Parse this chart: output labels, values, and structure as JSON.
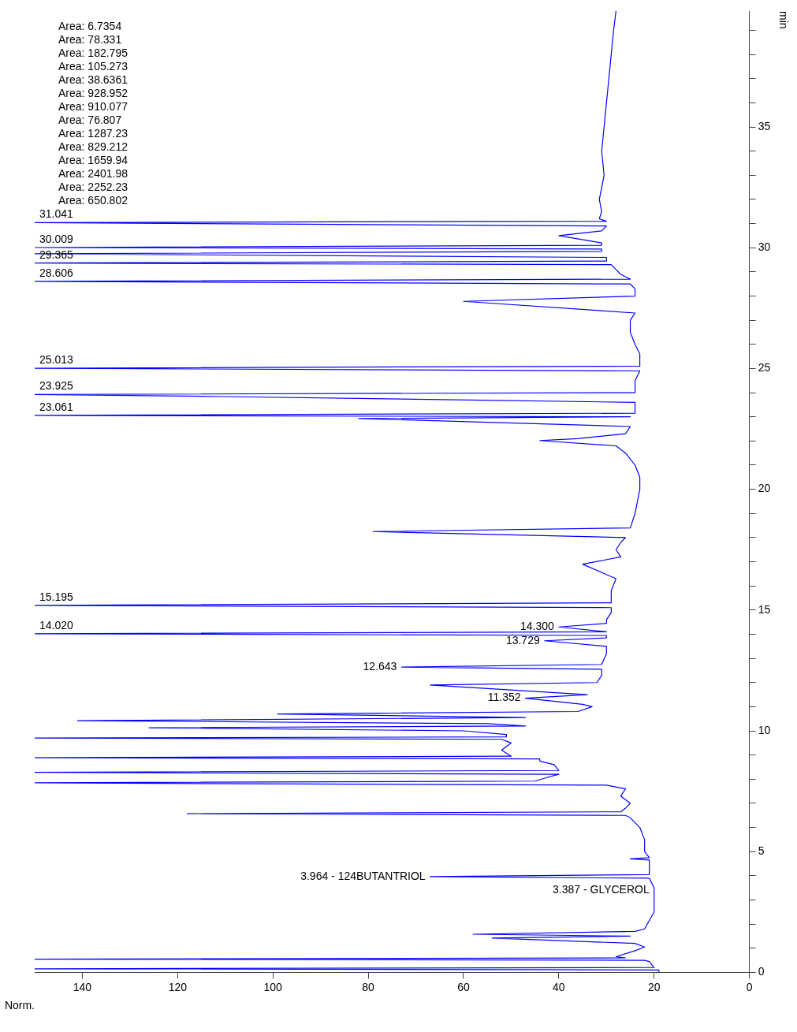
{
  "chart_data": {
    "type": "line",
    "xlabel": "Norm.",
    "ylabel": "min",
    "series": [
      {
        "color": "#0000ff",
        "x": [
          19,
          19,
          150,
          20,
          21,
          22,
          150,
          26,
          28,
          24,
          22,
          24,
          54,
          25,
          58,
          24,
          22,
          20,
          20,
          20,
          21,
          67,
          21,
          21,
          21,
          25,
          21,
          22,
          22,
          23,
          25,
          26,
          118,
          27,
          26,
          25,
          27,
          26,
          30,
          150,
          45,
          42,
          40,
          150,
          40,
          41,
          44,
          44,
          150,
          50,
          52,
          50,
          52,
          150,
          51,
          51,
          60,
          126,
          47,
          55,
          141,
          47,
          99,
          36,
          33,
          35,
          47,
          34,
          67,
          32,
          31,
          31,
          73,
          31,
          30,
          30,
          43,
          30,
          30,
          150,
          30,
          40,
          30,
          30,
          29,
          29,
          150,
          29,
          29,
          28,
          35,
          27,
          28,
          27,
          26,
          79,
          25,
          24,
          23,
          23,
          24,
          26,
          28,
          44,
          36,
          26,
          25,
          82,
          25,
          150,
          24,
          24,
          24,
          111,
          150,
          24,
          24,
          24,
          23,
          150,
          23,
          23,
          24,
          25,
          25,
          24,
          60,
          24,
          24,
          25,
          150,
          25,
          27,
          28,
          29,
          150,
          30,
          30,
          150,
          31,
          31,
          150,
          31,
          31,
          40,
          31,
          30,
          150,
          30,
          31.5,
          31,
          31.5,
          30.5,
          31,
          30.5,
          30,
          29.5,
          29,
          28.5,
          28
        ],
        "values": [
          0,
          0.1,
          0.15,
          0.2,
          0.45,
          0.5,
          0.55,
          0.6,
          0.65,
          0.9,
          1.05,
          1.2,
          1.42,
          1.5,
          1.58,
          1.7,
          1.8,
          2.5,
          3.387,
          3.5,
          3.9,
          3.964,
          4.05,
          4.2,
          4.65,
          4.7,
          4.75,
          5,
          5.5,
          6,
          6.4,
          6.5,
          6.57,
          6.65,
          6.8,
          7,
          7.3,
          7.6,
          7.75,
          7.85,
          7.92,
          8.1,
          8.2,
          8.28,
          8.36,
          8.6,
          8.75,
          8.84,
          8.89,
          8.95,
          9.2,
          9.5,
          9.65,
          9.7,
          9.75,
          9.85,
          10,
          10.13,
          10.2,
          10.3,
          10.42,
          10.55,
          10.7,
          10.8,
          11,
          11.1,
          11.352,
          11.5,
          11.9,
          12,
          12.3,
          12.55,
          12.643,
          12.75,
          13.2,
          13.5,
          13.729,
          13.85,
          13.95,
          14.02,
          14.1,
          14.3,
          14.45,
          14.6,
          14.9,
          15.1,
          15.195,
          15.3,
          15.8,
          16.3,
          16.9,
          17.2,
          17.5,
          17.8,
          18,
          18.25,
          18.4,
          19,
          20,
          20.5,
          21,
          21.5,
          21.8,
          22.02,
          22.1,
          22.3,
          22.6,
          22.93,
          23,
          23.061,
          23.15,
          23.3,
          23.6,
          23.84,
          23.925,
          24,
          24.1,
          24.5,
          24.9,
          25.013,
          25.1,
          25.6,
          26,
          26.5,
          27,
          27.3,
          27.78,
          28,
          28.3,
          28.5,
          28.606,
          28.7,
          28.9,
          29.1,
          29.3,
          29.365,
          29.45,
          29.6,
          29.75,
          29.85,
          29.95,
          30.009,
          30.1,
          30.2,
          30.5,
          30.7,
          30.9,
          31.041,
          31.1,
          31.2,
          31.5,
          32,
          33,
          34,
          35,
          36,
          37,
          38,
          39,
          39.8
        ]
      }
    ],
    "xlim": [
      150,
      0
    ],
    "xticks": [
      0,
      20,
      40,
      60,
      80,
      100,
      120,
      140
    ],
    "ylim": [
      0,
      39.8
    ],
    "yticks": [
      0,
      {
        "value": 1,
        "label": null
      },
      {
        "value": 2,
        "label": null
      },
      {
        "value": 3,
        "label": null
      },
      {
        "value": 4,
        "label": null
      },
      5,
      {
        "value": 6,
        "label": null
      },
      {
        "value": 7,
        "label": null
      },
      {
        "value": 8,
        "label": null
      },
      {
        "value": 9,
        "label": null
      },
      10,
      {
        "value": 11,
        "label": null
      },
      {
        "value": 12,
        "label": null
      },
      {
        "value": 13,
        "label": null
      },
      {
        "value": 14,
        "label": null
      },
      15,
      {
        "value": 16,
        "label": null
      },
      {
        "value": 17,
        "label": null
      },
      {
        "value": 18,
        "label": null
      },
      {
        "value": 19,
        "label": null
      },
      20,
      {
        "value": 21,
        "label": null
      },
      {
        "value": 22,
        "label": null
      },
      {
        "value": 23,
        "label": null
      },
      {
        "value": 24,
        "label": null
      },
      25,
      {
        "value": 26,
        "label": null
      },
      {
        "value": 27,
        "label": null
      },
      {
        "value": 28,
        "label": null
      },
      {
        "value": 29,
        "label": null
      },
      30,
      {
        "value": 31,
        "label": null
      },
      {
        "value": 32,
        "label": null
      },
      {
        "value": 33,
        "label": null
      },
      {
        "value": 34,
        "label": null
      },
      35,
      {
        "value": 36,
        "label": null
      },
      {
        "value": 37,
        "label": null
      },
      {
        "value": 38,
        "label": null
      },
      {
        "value": 39,
        "label": null
      }
    ],
    "grid": false,
    "legend": false,
    "marker": "none",
    "line_style": "solid",
    "annotations": [
      {
        "text": "3.387 - GLYCEROL",
        "x": 20,
        "y": 3.387
      },
      {
        "text": "3.964 - 124BUTANTRIOL",
        "x": 67,
        "y": 3.964
      },
      {
        "text": "11.352",
        "x": 47,
        "y": 11.352
      },
      {
        "text": "12.643",
        "x": 73,
        "y": 12.643
      },
      {
        "text": "13.729",
        "x": 43,
        "y": 13.729
      },
      {
        "text": "14.300",
        "x": 40,
        "y": 14.3
      },
      {
        "text": "14.020",
        "x": 150,
        "y": 14.02
      },
      {
        "text": "15.195",
        "x": 150,
        "y": 15.195
      },
      {
        "text": "23.061",
        "x": 150,
        "y": 23.061
      },
      {
        "text": "23.925",
        "x": 150,
        "y": 23.925
      },
      {
        "text": "25.013",
        "x": 150,
        "y": 25.013
      },
      {
        "text": "28.606",
        "x": 150,
        "y": 28.606
      },
      {
        "text": "29.365",
        "x": 150,
        "y": 29.365
      },
      {
        "text": "30.009",
        "x": 150,
        "y": 30.009
      },
      {
        "text": "31.041",
        "x": 150,
        "y": 31.041
      },
      "Area: 6.7354",
      "Area: 78.331",
      "Area: 182.795",
      "Area: 105.273",
      "Area: 38.6361",
      "Area: 928.952",
      "Area: 910.077",
      "Area: 76.807",
      "Area: 1287.23",
      "Area: 829.212",
      "Area: 1659.94",
      "Area: 2401.98",
      "Area: 2252.23",
      "Area: 650.802"
    ]
  }
}
